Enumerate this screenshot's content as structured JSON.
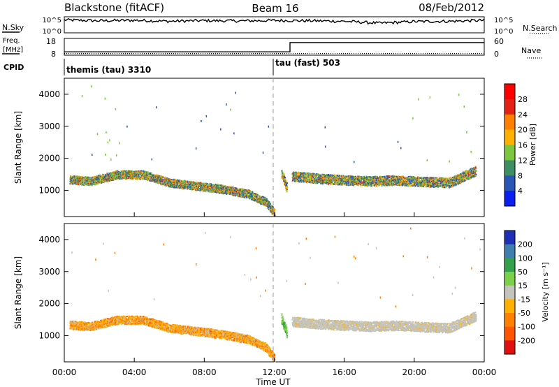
{
  "header": {
    "station": "Blackstone (fitACF)",
    "beam": "Beam 16",
    "date": "08/Feb/2012"
  },
  "left_labels": {
    "nsky": "N.Sky",
    "freq_line1": "Freq.",
    "freq_line2": "[MHz]",
    "cpid": "CPID"
  },
  "right_labels": {
    "nsearch": "N.Search",
    "nave": "Nave"
  },
  "status_axes": {
    "noise_left_ticks": [
      "10^5",
      "10^0"
    ],
    "noise_right_ticks": [
      "10^5",
      "10^0"
    ],
    "freq_left_ticks": [
      "18",
      "8"
    ],
    "freq_right_ticks": [
      "60",
      "0"
    ]
  },
  "cpid_labels": [
    {
      "time_h": 0.0,
      "text": "themis (tau) 3310"
    },
    {
      "time_h": 12.0,
      "text": "tau (fast) 503"
    }
  ],
  "x_axis": {
    "label": "Time UT",
    "ticks": [
      "00:00",
      "04:00",
      "08:00",
      "12:00",
      "16:00",
      "20:00",
      "00:00"
    ]
  },
  "panels": {
    "ylabel": "Slant Range [km]",
    "y_ticks": [
      "1000",
      "2000",
      "3000",
      "4000"
    ]
  },
  "power_bar": {
    "title": "Power [dB]",
    "labels": [
      "4",
      "8",
      "12",
      "16",
      "20",
      "24",
      "28"
    ],
    "colors": [
      "#0a1ff0",
      "#2a56b8",
      "#3d8f63",
      "#7cc640",
      "#ffb000",
      "#ff8000",
      "#e52015",
      "#ff0000"
    ]
  },
  "velocity_bar": {
    "title": "Velocity [m s⁻¹]",
    "labels": [
      "200",
      "100",
      "50",
      "15",
      "-15",
      "-50",
      "-100",
      "-200"
    ],
    "colors": [
      "#1f2fb8",
      "#3f7fb0",
      "#33a04a",
      "#7cd14a",
      "#c4c4bc",
      "#ffb000",
      "#ff8000",
      "#ff5500",
      "#e01010"
    ]
  },
  "colors": {
    "grey_scatter": "#c4c4bc",
    "orange_scatter": "#ffa500"
  },
  "chart_data": [
    {
      "type": "line",
      "panel": "noise",
      "x_range_hours": [
        0,
        24
      ],
      "series": [
        {
          "role": "sky noise (solid)",
          "x": [
            0,
            2,
            4,
            6,
            8,
            10,
            12,
            14,
            16,
            18,
            20,
            22,
            24
          ],
          "y_frac": [
            0.8,
            0.75,
            0.78,
            0.72,
            0.76,
            0.74,
            0.77,
            0.75,
            0.72,
            0.6,
            0.7,
            0.72,
            0.78
          ]
        }
      ]
    },
    {
      "type": "line",
      "panel": "frequency / nave",
      "x_range_hours": [
        0,
        24
      ],
      "series": [
        {
          "role": "frequency (solid)",
          "x": [
            0,
            12.9,
            12.9,
            24
          ],
          "y_frac": [
            0.2,
            0.2,
            0.75,
            0.75
          ]
        },
        {
          "role": "nave (dotted)",
          "x": [
            0,
            24
          ],
          "y_frac": [
            0.1,
            0.1
          ]
        }
      ]
    },
    {
      "type": "scatter",
      "panel": "power",
      "x_range_hours": [
        0,
        24
      ],
      "y_range_km": [
        180,
        4500
      ],
      "bands": [
        {
          "t": [
            0.3,
            1.5,
            3.0,
            4.5,
            6.0,
            7.5,
            9.0,
            10.5,
            11.5,
            12.0
          ],
          "r": [
            1350,
            1300,
            1500,
            1500,
            1250,
            1150,
            1050,
            900,
            650,
            300
          ],
          "width_km": 260
        },
        {
          "t": [
            12.4,
            12.7
          ],
          "r": [
            1550,
            1100
          ],
          "width_km": 300
        },
        {
          "t": [
            13.0,
            14.5,
            16.0,
            17.5,
            19.0,
            20.5,
            22.0,
            23.5
          ],
          "r": [
            1450,
            1380,
            1330,
            1300,
            1330,
            1280,
            1250,
            1620
          ],
          "width_km": 300
        }
      ]
    },
    {
      "type": "scatter",
      "panel": "velocity",
      "x_range_hours": [
        0,
        24
      ],
      "y_range_km": [
        180,
        4500
      ],
      "bands": [
        {
          "t": [
            0.3,
            1.5,
            3.0,
            4.5,
            6.0,
            7.5,
            9.0,
            10.5,
            11.5,
            12.0
          ],
          "r": [
            1350,
            1300,
            1500,
            1500,
            1250,
            1150,
            1050,
            900,
            650,
            300
          ],
          "width_km": 260
        },
        {
          "t": [
            12.4,
            12.7
          ],
          "r": [
            1550,
            1100
          ],
          "width_km": 300
        },
        {
          "t": [
            13.0,
            14.5,
            16.0,
            17.5,
            19.0,
            20.5,
            22.0,
            23.5
          ],
          "r": [
            1450,
            1380,
            1330,
            1300,
            1330,
            1280,
            1250,
            1620
          ],
          "width_km": 300
        }
      ]
    }
  ]
}
